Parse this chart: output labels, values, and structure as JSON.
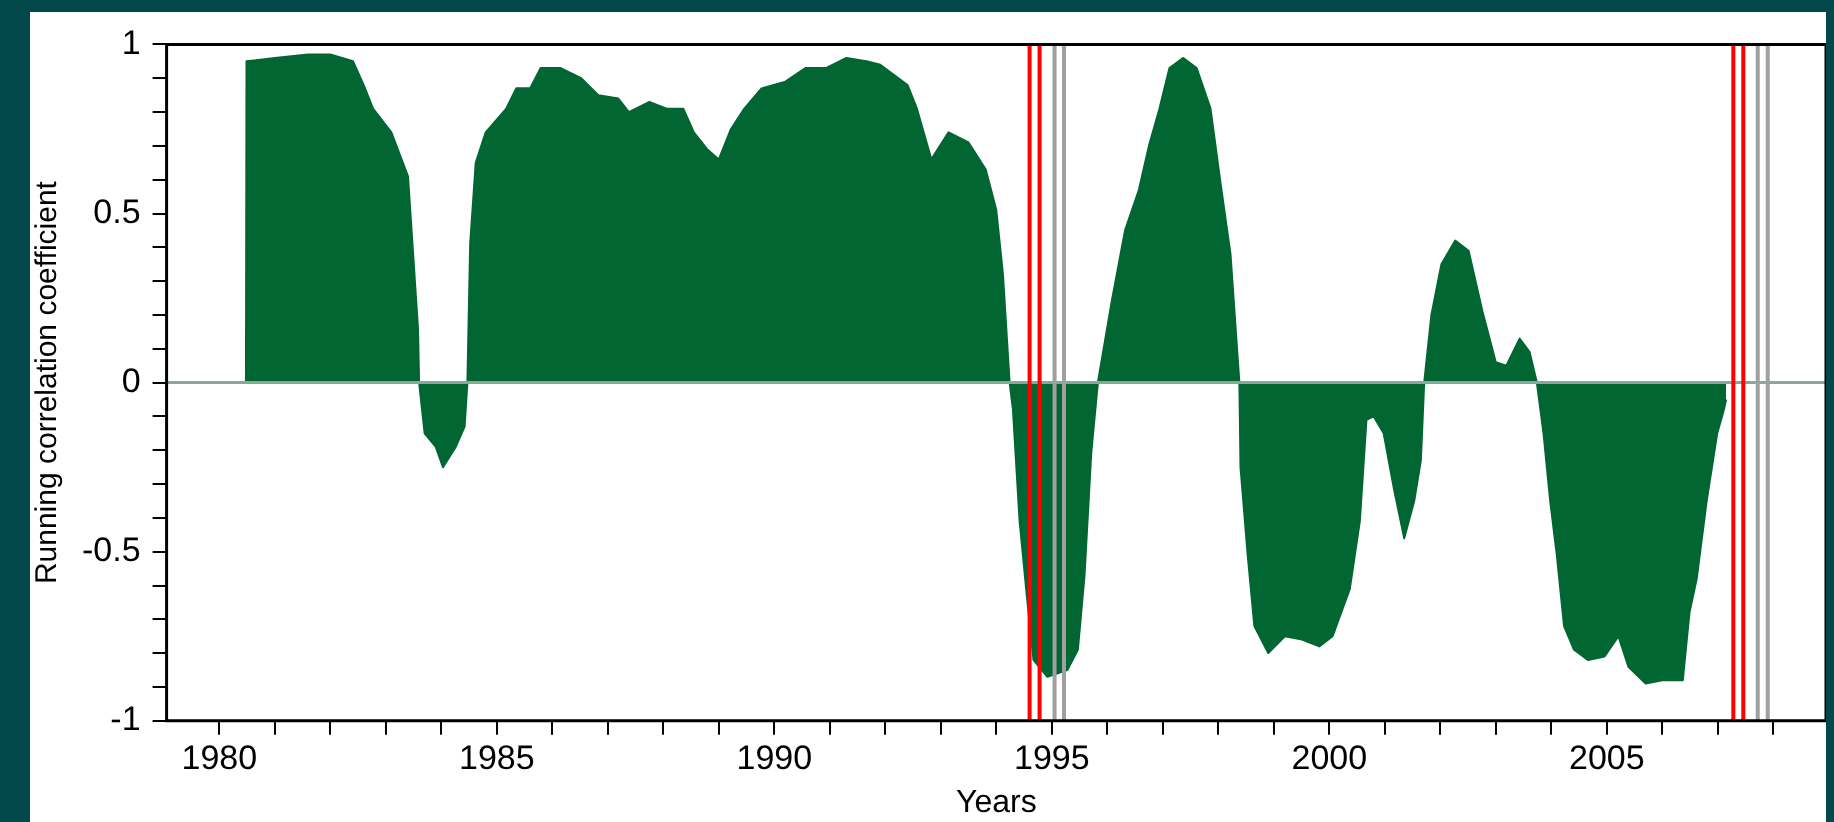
{
  "chart_data": {
    "type": "area",
    "xlabel": "Years",
    "ylabel": "Running correlation coefficient",
    "xlim": [
      1979.05,
      2008.95
    ],
    "ylim": [
      -1,
      1
    ],
    "xticks": [
      1980,
      {
        "value": 1981,
        "label": null
      },
      {
        "value": 1982,
        "label": null
      },
      {
        "value": 1983,
        "label": null
      },
      {
        "value": 1984,
        "label": null
      },
      1985,
      {
        "value": 1986,
        "label": null
      },
      {
        "value": 1987,
        "label": null
      },
      {
        "value": 1988,
        "label": null
      },
      {
        "value": 1989,
        "label": null
      },
      1990,
      {
        "value": 1991,
        "label": null
      },
      {
        "value": 1992,
        "label": null
      },
      {
        "value": 1993,
        "label": null
      },
      {
        "value": 1994,
        "label": null
      },
      1995,
      {
        "value": 1996,
        "label": null
      },
      {
        "value": 1997,
        "label": null
      },
      {
        "value": 1998,
        "label": null
      },
      {
        "value": 1999,
        "label": null
      },
      2000,
      {
        "value": 2001,
        "label": null
      },
      {
        "value": 2002,
        "label": null
      },
      {
        "value": 2003,
        "label": null
      },
      {
        "value": 2004,
        "label": null
      },
      2005,
      {
        "value": 2006,
        "label": null
      },
      {
        "value": 2007,
        "label": null
      },
      {
        "value": 2008,
        "label": null
      }
    ],
    "yticks": [
      -1,
      {
        "value": -0.9,
        "label": null
      },
      {
        "value": -0.8,
        "label": null
      },
      {
        "value": -0.7,
        "label": null
      },
      {
        "value": -0.6,
        "label": null
      },
      -0.5,
      {
        "value": -0.4,
        "label": null
      },
      {
        "value": -0.3,
        "label": null
      },
      {
        "value": -0.2,
        "label": null
      },
      {
        "value": -0.1,
        "label": null
      },
      0,
      {
        "value": 0.1,
        "label": null
      },
      {
        "value": 0.2,
        "label": null
      },
      {
        "value": 0.3,
        "label": null
      },
      {
        "value": 0.4,
        "label": null
      },
      0.5,
      {
        "value": 0.6,
        "label": null
      },
      {
        "value": 0.7,
        "label": null
      },
      {
        "value": 0.8,
        "label": null
      },
      {
        "value": 0.9,
        "label": null
      },
      1
    ],
    "grid": false,
    "legend": false,
    "marker": "none",
    "series": [
      {
        "color": "#026633",
        "x": [
          1979.5,
          1980.48,
          1980.49,
          1981.0,
          1981.6,
          1982.0,
          1982.41,
          1982.6,
          1982.77,
          1983.1,
          1983.4,
          1983.48,
          1983.58,
          1983.6,
          1983.7,
          1983.9,
          1984.03,
          1984.26,
          1984.42,
          1984.47,
          1984.52,
          1984.62,
          1984.8,
          1985.17,
          1985.35,
          1985.6,
          1985.79,
          1986.15,
          1986.52,
          1986.83,
          1987.19,
          1987.38,
          1987.75,
          1988.06,
          1988.36,
          1988.55,
          1988.79,
          1989.0,
          1989.22,
          1989.46,
          1989.77,
          1990.2,
          1990.56,
          1990.93,
          1991.3,
          1991.66,
          1991.91,
          1992.4,
          1992.57,
          1992.83,
          1993.14,
          1993.5,
          1993.81,
          1994.0,
          1994.12,
          1994.24,
          1994.3,
          1994.42,
          1994.55,
          1994.67,
          1994.92,
          1995.28,
          1995.47,
          1995.59,
          1995.71,
          1995.83,
          1996.08,
          1996.32,
          1996.57,
          1996.75,
          1996.94,
          1997.12,
          1997.37,
          1997.61,
          1997.86,
          1998.04,
          1998.22,
          1998.38,
          1998.4,
          1998.53,
          1998.65,
          1998.9,
          1999.2,
          1999.51,
          1999.82,
          2000.06,
          2000.37,
          2000.55,
          2000.67,
          2000.8,
          2000.98,
          2001.16,
          2001.35,
          2001.53,
          2001.65,
          2001.71,
          2001.84,
          2002.02,
          2002.27,
          2002.51,
          2002.76,
          2003.0,
          2003.19,
          2003.43,
          2003.61,
          2003.74,
          2003.86,
          2003.98,
          2004.1,
          2004.23,
          2004.41,
          2004.66,
          2004.96,
          2005.21,
          2005.39,
          2005.7,
          2006.0,
          2006.37,
          2006.49,
          2006.62,
          2006.8,
          2006.99,
          2007.11,
          2007.15
        ],
        "values": [
          0,
          0,
          0.95,
          0.96,
          0.97,
          0.97,
          0.95,
          0.88,
          0.81,
          0.74,
          0.61,
          0.41,
          0.16,
          0,
          -0.15,
          -0.19,
          -0.25,
          -0.19,
          -0.13,
          0,
          0.41,
          0.65,
          0.74,
          0.81,
          0.87,
          0.87,
          0.93,
          0.93,
          0.9,
          0.85,
          0.84,
          0.8,
          0.83,
          0.81,
          0.81,
          0.74,
          0.69,
          0.66,
          0.75,
          0.81,
          0.87,
          0.89,
          0.93,
          0.93,
          0.96,
          0.95,
          0.94,
          0.88,
          0.81,
          0.66,
          0.74,
          0.71,
          0.63,
          0.51,
          0.32,
          0,
          -0.08,
          -0.41,
          -0.63,
          -0.82,
          -0.87,
          -0.85,
          -0.79,
          -0.57,
          -0.21,
          0,
          0.24,
          0.45,
          0.57,
          0.7,
          0.81,
          0.93,
          0.96,
          0.93,
          0.81,
          0.59,
          0.38,
          0,
          -0.25,
          -0.51,
          -0.72,
          -0.8,
          -0.75,
          -0.76,
          -0.78,
          -0.75,
          -0.61,
          -0.41,
          -0.11,
          -0.1,
          -0.15,
          -0.31,
          -0.46,
          -0.35,
          -0.23,
          0,
          0.2,
          0.35,
          0.42,
          0.39,
          0.21,
          0.06,
          0.05,
          0.13,
          0.09,
          0,
          -0.15,
          -0.35,
          -0.51,
          -0.72,
          -0.79,
          -0.82,
          -0.81,
          -0.75,
          -0.84,
          -0.89,
          -0.88,
          -0.88,
          -0.68,
          -0.58,
          -0.35,
          -0.15,
          -0.08,
          -0.05
        ]
      }
    ],
    "ref_lines": [
      {
        "axis": "y",
        "value": 0,
        "color": "#8aa89a"
      },
      {
        "axis": "x",
        "value": 1994.6,
        "color": "#ff0000"
      },
      {
        "axis": "x",
        "value": 1994.78,
        "color": "#ff0000"
      },
      {
        "axis": "x",
        "value": 1995.05,
        "color": "#a0a0a0"
      },
      {
        "axis": "x",
        "value": 1995.22,
        "color": "#a0a0a0"
      },
      {
        "axis": "x",
        "value": 2007.28,
        "color": "#ff0000"
      },
      {
        "axis": "x",
        "value": 2007.46,
        "color": "#ff0000"
      },
      {
        "axis": "x",
        "value": 2007.72,
        "color": "#a0a0a0"
      },
      {
        "axis": "x",
        "value": 2007.9,
        "color": "#a0a0a0"
      }
    ]
  }
}
